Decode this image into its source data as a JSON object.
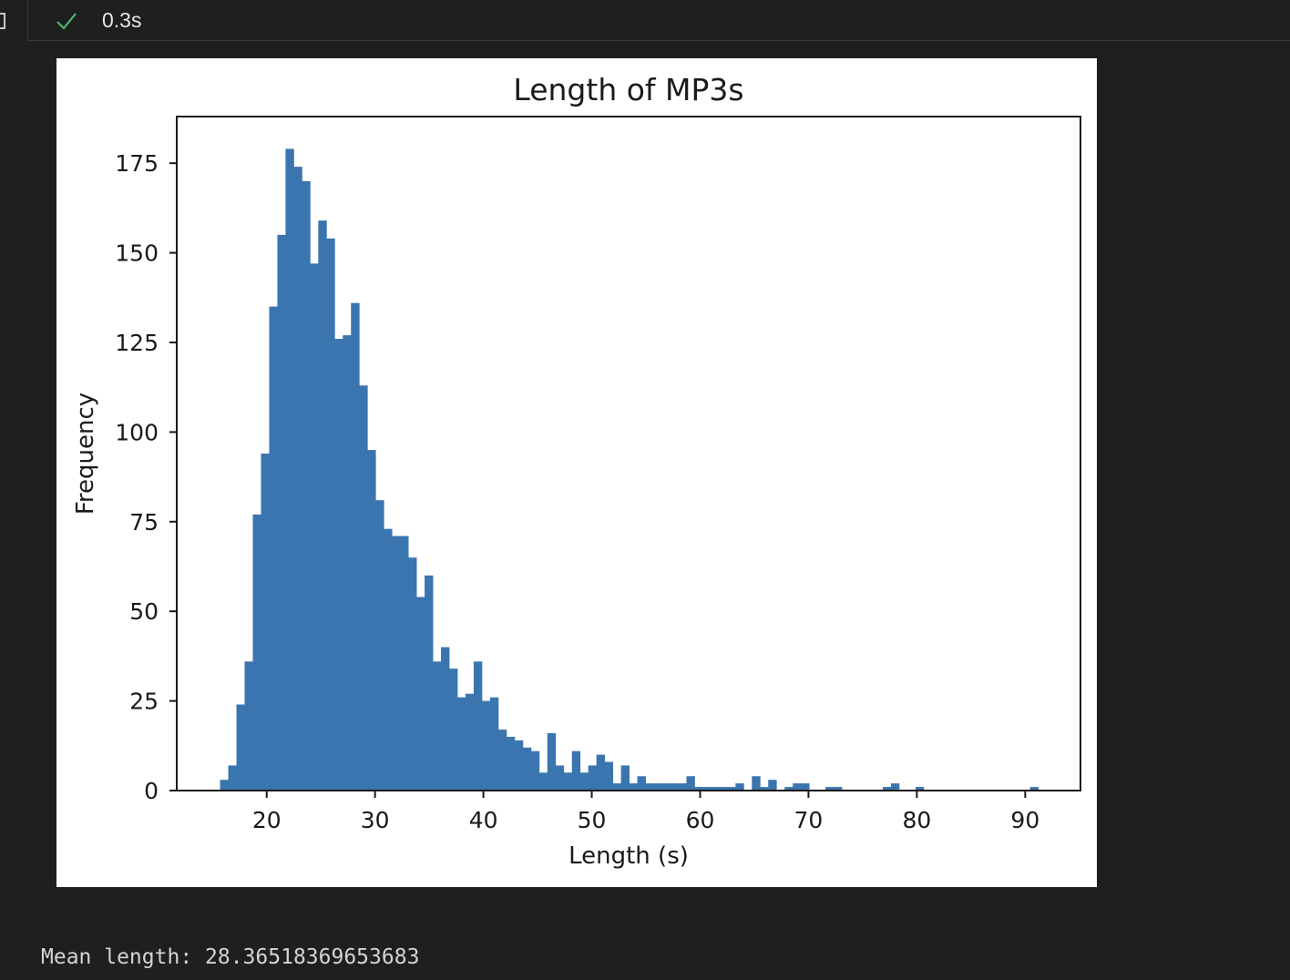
{
  "cell": {
    "status": "success",
    "execution_time": "0.3s"
  },
  "colors": {
    "success": "#4ec072",
    "bar": "#3b75af"
  },
  "chart_data": {
    "type": "bar",
    "title": "Length of MP3s",
    "xlabel": "Length (s)",
    "ylabel": "Frequency",
    "xlim": [
      11.7,
      95.1
    ],
    "ylim": [
      0,
      188
    ],
    "xticks": [
      20,
      30,
      40,
      50,
      60,
      70,
      80,
      90
    ],
    "yticks": [
      0,
      25,
      50,
      75,
      100,
      125,
      150,
      175
    ],
    "bin_start": 15.7,
    "bin_width": 0.755,
    "values": [
      3,
      7,
      24,
      36,
      77,
      94,
      135,
      155,
      179,
      174,
      170,
      147,
      159,
      154,
      126,
      127,
      136,
      113,
      95,
      81,
      73,
      71,
      71,
      65,
      54,
      60,
      36,
      40,
      34,
      26,
      27,
      36,
      25,
      26,
      17,
      15,
      14,
      12,
      11,
      5,
      16,
      7,
      5,
      11,
      5,
      7,
      10,
      8,
      2,
      7,
      2,
      4,
      2,
      2,
      2,
      2,
      2,
      4,
      1,
      1,
      1,
      1,
      1,
      2,
      0,
      4,
      1,
      3,
      0,
      1,
      2,
      2,
      0,
      0,
      1,
      1,
      0,
      0,
      0,
      0,
      0,
      1,
      2,
      0,
      0,
      1,
      0,
      0,
      0,
      0,
      0,
      0,
      0,
      0,
      0,
      0,
      0,
      0,
      0,
      1
    ],
    "grid": false,
    "legend": "none"
  },
  "output": {
    "stdout": "Mean length: 28.36518369653683"
  }
}
